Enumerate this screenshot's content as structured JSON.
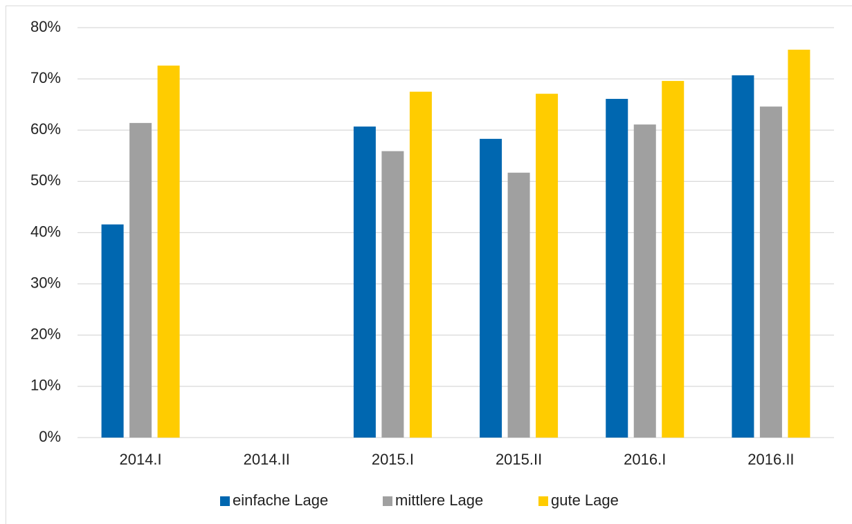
{
  "chart_data": {
    "type": "bar",
    "categories": [
      "2014.I",
      "2014.II",
      "2015.I",
      "2015.II",
      "2016.I",
      "2016.II"
    ],
    "series": [
      {
        "name": "einfache Lage",
        "color": "#0067b0",
        "values": [
          41.6,
          null,
          60.7,
          58.3,
          66.1,
          70.7
        ]
      },
      {
        "name": "mittlere Lage",
        "color": "#a0a0a0",
        "values": [
          61.4,
          null,
          55.9,
          51.7,
          61.1,
          64.6
        ]
      },
      {
        "name": "gute Lage",
        "color": "#ffcc00",
        "values": [
          72.6,
          null,
          67.5,
          67.1,
          69.6,
          75.7
        ]
      }
    ],
    "ylim": [
      0,
      80
    ],
    "yticks": [
      {
        "value": 0,
        "label": "0%"
      },
      {
        "value": 10,
        "label": "10%"
      },
      {
        "value": 20,
        "label": "20%"
      },
      {
        "value": 30,
        "label": "30%"
      },
      {
        "value": 40,
        "label": "40%"
      },
      {
        "value": 50,
        "label": "50%"
      },
      {
        "value": 60,
        "label": "60%"
      },
      {
        "value": 70,
        "label": "70%"
      },
      {
        "value": 80,
        "label": "80%"
      }
    ],
    "grid": true,
    "legend": "bottom"
  }
}
